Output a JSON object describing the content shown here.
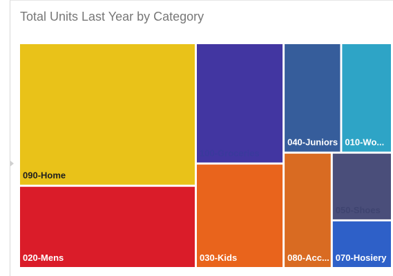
{
  "chart_data": {
    "type": "treemap",
    "title": "Total Units Last Year by Category",
    "xlabel": "",
    "ylabel": "",
    "legend": "none",
    "series": [
      {
        "category": "090-Home",
        "value": 27.2,
        "color": "#e9c219",
        "label_color": "#1f1f1f"
      },
      {
        "category": "020-Mens",
        "value": 15.7,
        "color": "#da1c29",
        "label_color": "#ffffff"
      },
      {
        "category": "100-Groceries",
        "value": 11.4,
        "color": "#4236a1",
        "label_color": "#3a3a9c"
      },
      {
        "category": "030-Kids",
        "value": 9.9,
        "color": "#e9641c",
        "label_color": "#ffffff"
      },
      {
        "category": "040-Juniors",
        "value": 6.8,
        "color": "#365d9b",
        "label_color": "#ffffff"
      },
      {
        "category": "010-Wo...",
        "value": 6.0,
        "color": "#2ea4c6",
        "label_color": "#ffffff"
      },
      {
        "category": "080-Acc...",
        "value": 6.0,
        "color": "#d96b22",
        "label_color": "#ffffff"
      },
      {
        "category": "050-Shoes",
        "value": 4.4,
        "color": "#4a4e7a",
        "label_color": "#3f4470"
      },
      {
        "category": "070-Hosiery",
        "value": 3.1,
        "color": "#2e60c8",
        "label_color": "#ffffff"
      }
    ]
  }
}
